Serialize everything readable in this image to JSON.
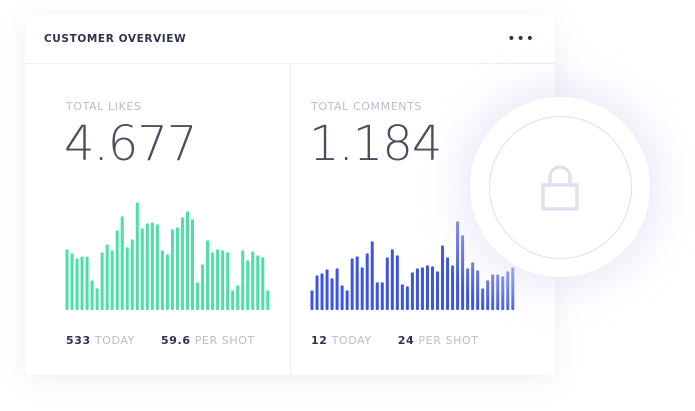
{
  "card": {
    "title": "CUSTOMER OVERVIEW",
    "menu_icon": "more-horizontal-icon",
    "menu_label": "•••"
  },
  "likes": {
    "label": "TOTAL LIKES",
    "value": "4.677",
    "today_value": "533",
    "today_label": "TODAY",
    "per_shot_value": "59.6",
    "per_shot_label": "PER SHOT",
    "color": "#4ae0a8"
  },
  "comments": {
    "label": "TOTAL COMMENTS",
    "value": "1.184",
    "today_value": "12",
    "today_label": "TODAY",
    "per_shot_value": "24",
    "per_shot_label": "PER SHOT",
    "color": "#3d55e0"
  },
  "lock": {
    "icon": "lock-icon",
    "color": "#e3dff0"
  },
  "chart_data": [
    {
      "type": "bar",
      "title": "TOTAL LIKES",
      "values": [
        182,
        170,
        155,
        160,
        160,
        89,
        65,
        173,
        197,
        179,
        239,
        281,
        188,
        212,
        323,
        245,
        260,
        263,
        257,
        179,
        167,
        242,
        248,
        278,
        296,
        272,
        83,
        137,
        209,
        173,
        182,
        179,
        173,
        59,
        74,
        179,
        149,
        176,
        164,
        158,
        59
      ],
      "ylim": [
        0,
        330
      ]
    },
    {
      "type": "bar",
      "title": "TOTAL COMMENTS",
      "values": [
        59,
        104,
        110,
        122,
        95,
        125,
        74,
        59,
        155,
        161,
        128,
        170,
        206,
        83,
        83,
        158,
        182,
        164,
        77,
        71,
        113,
        125,
        128,
        134,
        131,
        116,
        194,
        158,
        134,
        266,
        224,
        125,
        143,
        119,
        65,
        89,
        107,
        107,
        101,
        116,
        128
      ],
      "ylim": [
        0,
        330
      ]
    }
  ]
}
